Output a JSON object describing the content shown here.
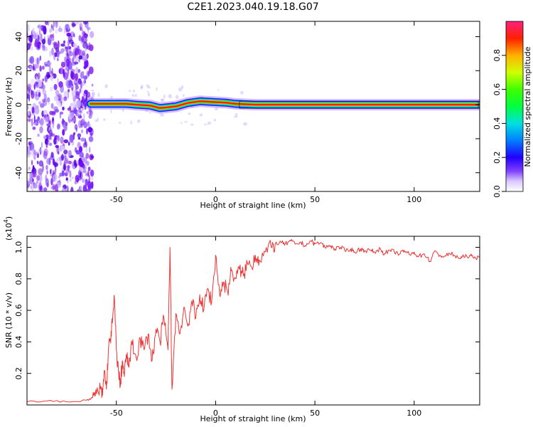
{
  "title": "C2E1.2023.040.19.18.G07",
  "colors": {
    "snr_line": "#ee3333",
    "axis": "#000000"
  },
  "chart_data": [
    {
      "type": "heatmap",
      "xlabel": "Height of straight line (km)",
      "ylabel": "Frequency (Hz)",
      "xlim": [
        -95,
        133
      ],
      "ylim": [
        -51,
        49
      ],
      "x_ticks": [
        -50,
        0,
        50,
        100
      ],
      "y_ticks": [
        -40,
        -20,
        0,
        20,
        40
      ],
      "colorbar": {
        "label": "Normalized spectral amplitude",
        "range": [
          0,
          1
        ],
        "ticks": [
          0.0,
          0.2,
          0.4,
          0.6,
          0.8
        ]
      },
      "ridge": [
        {
          "x": -63,
          "freq": 0.5
        },
        {
          "x": -55,
          "freq": 0.5
        },
        {
          "x": -45,
          "freq": 0.5
        },
        {
          "x": -40,
          "freq": 0
        },
        {
          "x": -33,
          "freq": -0.5
        },
        {
          "x": -28,
          "freq": -2
        },
        {
          "x": -20,
          "freq": -1
        },
        {
          "x": -14,
          "freq": 1
        },
        {
          "x": -8,
          "freq": 2
        },
        {
          "x": 0,
          "freq": 1.5
        },
        {
          "x": 5,
          "freq": 1.2
        },
        {
          "x": 10,
          "freq": 0.5
        },
        {
          "x": 20,
          "freq": 0
        },
        {
          "x": 50,
          "freq": 0
        },
        {
          "x": 100,
          "freq": 0
        },
        {
          "x": 133,
          "freq": 0
        }
      ],
      "noise_region_x": [
        -95,
        -62
      ]
    },
    {
      "type": "line",
      "xlabel": "Height of straight line (km)",
      "ylabel": "SNR (10 * v/v)",
      "yscale_label": "(x10",
      "yscale_exponent": "4",
      "yscale_close": ")",
      "xlim": [
        -95,
        133
      ],
      "ylim": [
        0,
        1.07
      ],
      "x_ticks": [
        -50,
        0,
        50,
        100
      ],
      "y_ticks": [
        0.2,
        0.4,
        0.6,
        0.8,
        1.0
      ],
      "y_tick_labels": [
        "0.2",
        "0.4",
        "0.6",
        "0.8",
        "1.0"
      ],
      "series": [
        {
          "x": [
            -95,
            -85,
            -75,
            -65,
            -62,
            -60,
            -58,
            -57,
            -56,
            -55,
            -54,
            -53,
            -52,
            -51,
            -50,
            -49,
            -48,
            -47,
            -46,
            -45,
            -44,
            -42,
            -40,
            -38,
            -36,
            -34,
            -32,
            -30,
            -28,
            -26,
            -24,
            -23,
            -22,
            -20,
            -18,
            -16,
            -14,
            -12,
            -10,
            -8,
            -6,
            -4,
            -2,
            0,
            2,
            4,
            6,
            8,
            10,
            12,
            14,
            16,
            18,
            20,
            22,
            25,
            28,
            30,
            33,
            35,
            38,
            40,
            43,
            45,
            48,
            50,
            53,
            55,
            58,
            60,
            63,
            65,
            68,
            70,
            73,
            75,
            78,
            80,
            83,
            85,
            88,
            90,
            93,
            95,
            98,
            100,
            102,
            105,
            108,
            110,
            113,
            115,
            118,
            120,
            123,
            125,
            128,
            130,
            133
          ],
          "y": [
            0.02,
            0.025,
            0.02,
            0.03,
            0.045,
            0.07,
            0.1,
            0.06,
            0.22,
            0.1,
            0.35,
            0.42,
            0.52,
            0.68,
            0.35,
            0.22,
            0.12,
            0.28,
            0.18,
            0.32,
            0.25,
            0.38,
            0.3,
            0.42,
            0.35,
            0.45,
            0.28,
            0.48,
            0.4,
            0.55,
            0.35,
            1.0,
            0.1,
            0.58,
            0.45,
            0.62,
            0.5,
            0.66,
            0.55,
            0.7,
            0.6,
            0.74,
            0.65,
            0.95,
            0.7,
            0.78,
            0.72,
            0.85,
            0.8,
            0.86,
            0.82,
            0.9,
            0.88,
            0.95,
            0.92,
            0.97,
            1.0,
            1.02,
            1.03,
            1.02,
            1.04,
            1.02,
            1.03,
            1.01,
            1.04,
            1.02,
            1.03,
            1.0,
            1.01,
            0.99,
            1.0,
            0.98,
            0.99,
            0.97,
            0.99,
            0.98,
            0.98,
            0.97,
            0.99,
            0.96,
            0.98,
            0.97,
            0.96,
            0.98,
            0.95,
            0.97,
            0.94,
            0.96,
            0.91,
            0.97,
            0.95,
            0.94,
            0.96,
            0.95,
            0.93,
            0.94,
            0.95,
            0.93,
            0.94
          ]
        }
      ]
    }
  ]
}
